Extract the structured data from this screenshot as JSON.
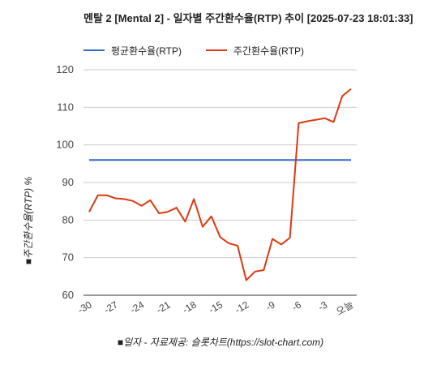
{
  "chart_data": {
    "type": "line",
    "title": "멘탈 2 [Mental 2] - 일자별 주간환수율(RTP) 추이 [2025-07-23 18:01:33]",
    "ylabel": "■주간환수율(RTP) %",
    "xlabel": "■일자 - 자료제공: 슬롯차트(https://slot-chart.com)",
    "ylim": [
      60,
      120
    ],
    "yticks": [
      60,
      70,
      80,
      90,
      100,
      110,
      120
    ],
    "x": [
      -30,
      -29,
      -28,
      -27,
      -26,
      -25,
      -24,
      -23,
      -22,
      -21,
      -20,
      -19,
      -18,
      -17,
      -16,
      -15,
      -14,
      -13,
      -12,
      -11,
      -10,
      -9,
      -8,
      -7,
      -6,
      -5,
      -4,
      -3,
      -2,
      -1,
      0
    ],
    "xticks": [
      {
        "value": -30,
        "label": "-30"
      },
      {
        "value": -27,
        "label": "-27"
      },
      {
        "value": -24,
        "label": "-24"
      },
      {
        "value": -21,
        "label": "-21"
      },
      {
        "value": -18,
        "label": "-18"
      },
      {
        "value": -15,
        "label": "-15"
      },
      {
        "value": -12,
        "label": "-12"
      },
      {
        "value": -9,
        "label": "-9"
      },
      {
        "value": -6,
        "label": "-6"
      },
      {
        "value": -3,
        "label": "-3"
      },
      {
        "value": 0,
        "label": "오늘"
      }
    ],
    "grid": true,
    "legend_position": "top",
    "series": [
      {
        "name": "평균환수율(RTP)",
        "color": "#3366cc",
        "values": [
          96,
          96,
          96,
          96,
          96,
          96,
          96,
          96,
          96,
          96,
          96,
          96,
          96,
          96,
          96,
          96,
          96,
          96,
          96,
          96,
          96,
          96,
          96,
          96,
          96,
          96,
          96,
          96,
          96,
          96,
          96
        ]
      },
      {
        "name": "주간환수율(RTP)",
        "color": "#dc3912",
        "values": [
          82.2,
          86.6,
          86.6,
          85.8,
          85.6,
          85.1,
          83.8,
          85.3,
          81.8,
          82.2,
          83.3,
          79.6,
          85.6,
          78.2,
          81.0,
          75.5,
          73.8,
          73.2,
          64.0,
          66.3,
          66.7,
          75.0,
          73.5,
          75.3,
          105.8,
          106.3,
          106.7,
          107.1,
          106.1,
          113.0,
          114.9
        ]
      }
    ]
  }
}
